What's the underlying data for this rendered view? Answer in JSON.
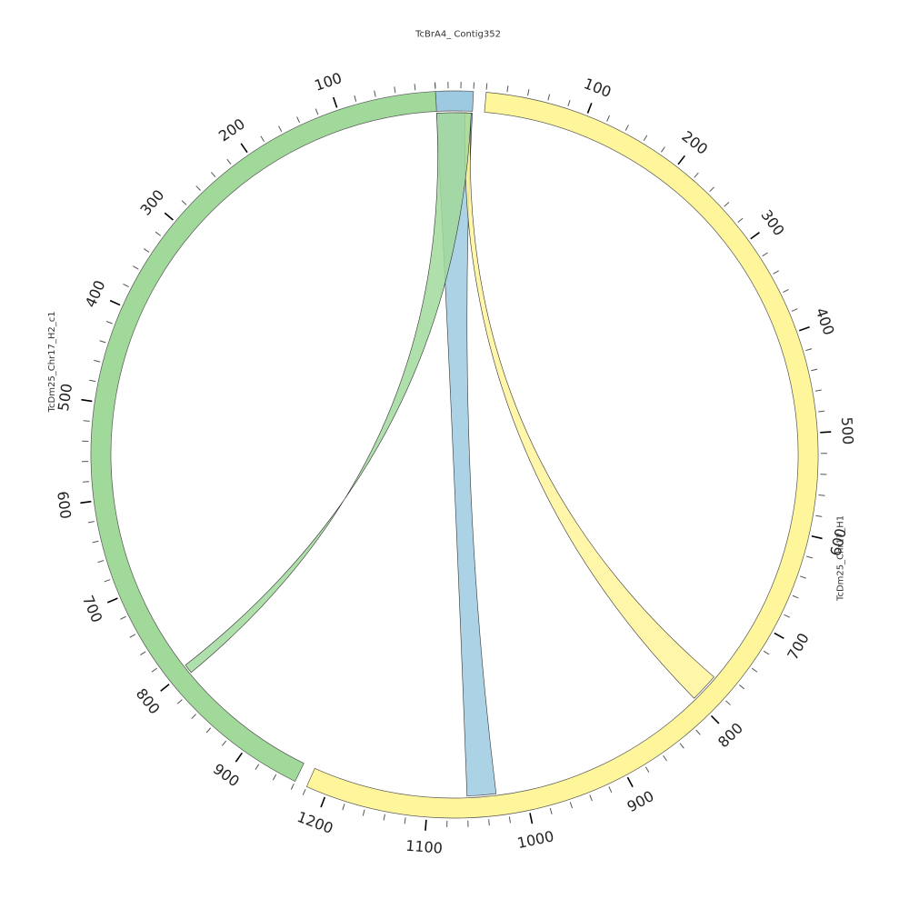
{
  "chart_data": {
    "type": "chord",
    "segments": [
      {
        "name": "TcBrA4_ Contig352",
        "length": 60,
        "color": "#9ecae1",
        "tick_labels": []
      },
      {
        "name": "TcDm25_Chr17_H1",
        "length": 1220,
        "color": "#fff59a",
        "tick_labels": [
          "100",
          "200",
          "300",
          "400",
          "500",
          "600",
          "700",
          "800",
          "900",
          "1000",
          "1100",
          "1200"
        ]
      },
      {
        "name": "TcDm25_Chr17_H2_c1",
        "length": 960,
        "color": "#a1d99b",
        "tick_labels": [
          "100",
          "200",
          "300",
          "400",
          "500",
          "600",
          "700",
          "800",
          "900"
        ]
      }
    ],
    "links": [
      {
        "from": {
          "segment": "TcBrA4_ Contig352",
          "start": 0,
          "end": 60
        },
        "to": {
          "segment": "TcDm25_Chr17_H1",
          "start": 1030,
          "end": 1060
        },
        "color": "#9ecae1"
      },
      {
        "from": {
          "segment": "TcBrA4_ Contig352",
          "start": 48,
          "end": 58
        },
        "to": {
          "segment": "TcDm25_Chr17_H1",
          "start": 770,
          "end": 800
        },
        "color": "#fff59a"
      },
      {
        "from": {
          "segment": "TcBrA4_ Contig352",
          "start": 0,
          "end": 58
        },
        "to": {
          "segment": "TcDm25_Chr17_H2_c1",
          "start": 795,
          "end": 805
        },
        "color": "#a1d99b"
      }
    ],
    "orientation": {
      "TcDm25_Chr17_H2_c1": "reversed"
    }
  }
}
